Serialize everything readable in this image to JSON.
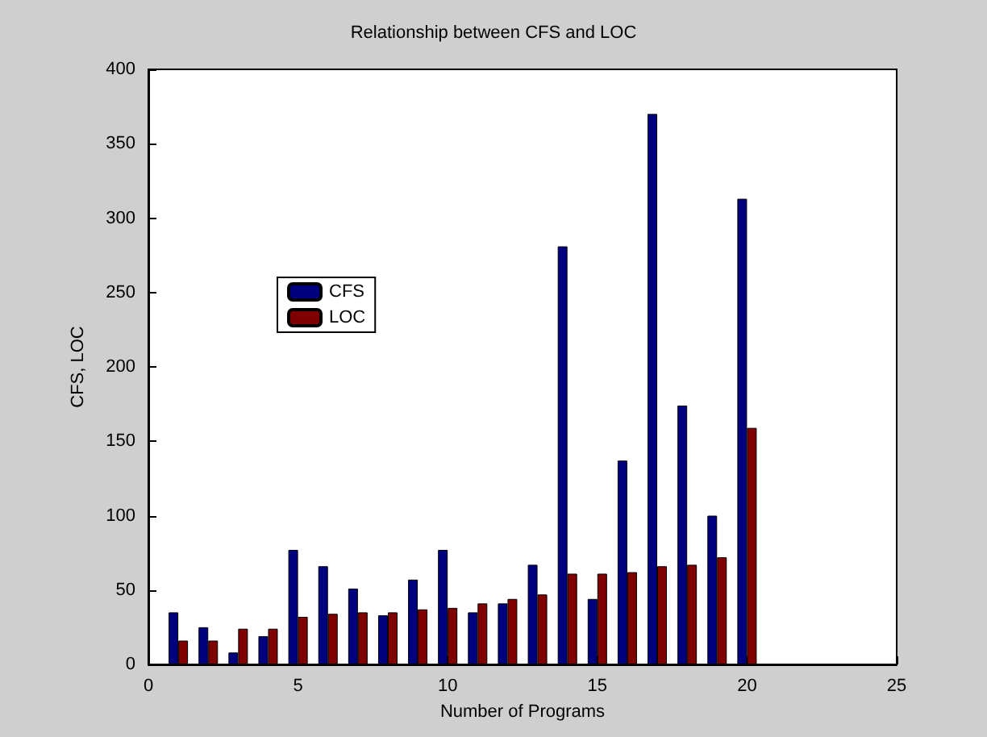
{
  "chart_data": {
    "type": "bar",
    "title": "Relationship between CFS and LOC",
    "xlabel": "Number of Programs",
    "ylabel": "CFS, LOC",
    "x": [
      1,
      2,
      3,
      4,
      5,
      6,
      7,
      8,
      9,
      10,
      11,
      12,
      13,
      14,
      15,
      16,
      17,
      18,
      19,
      20
    ],
    "series": [
      {
        "name": "CFS",
        "color": "#00007f",
        "values": [
          35,
          25,
          8,
          19,
          77,
          66,
          51,
          33,
          57,
          77,
          35,
          41,
          67,
          281,
          44,
          137,
          370,
          174,
          100,
          313
        ]
      },
      {
        "name": "LOC",
        "color": "#7f0000",
        "values": [
          16,
          16,
          24,
          24,
          32,
          34,
          35,
          35,
          37,
          38,
          41,
          44,
          47,
          61,
          61,
          62,
          66,
          67,
          72,
          159
        ]
      }
    ],
    "xlim": [
      0,
      25
    ],
    "xticks": [
      0,
      5,
      10,
      15,
      20,
      25
    ],
    "ylim": [
      0,
      400
    ],
    "yticks": [
      0,
      50,
      100,
      150,
      200,
      250,
      300,
      350,
      400
    ],
    "grid": false,
    "legend": "left"
  }
}
